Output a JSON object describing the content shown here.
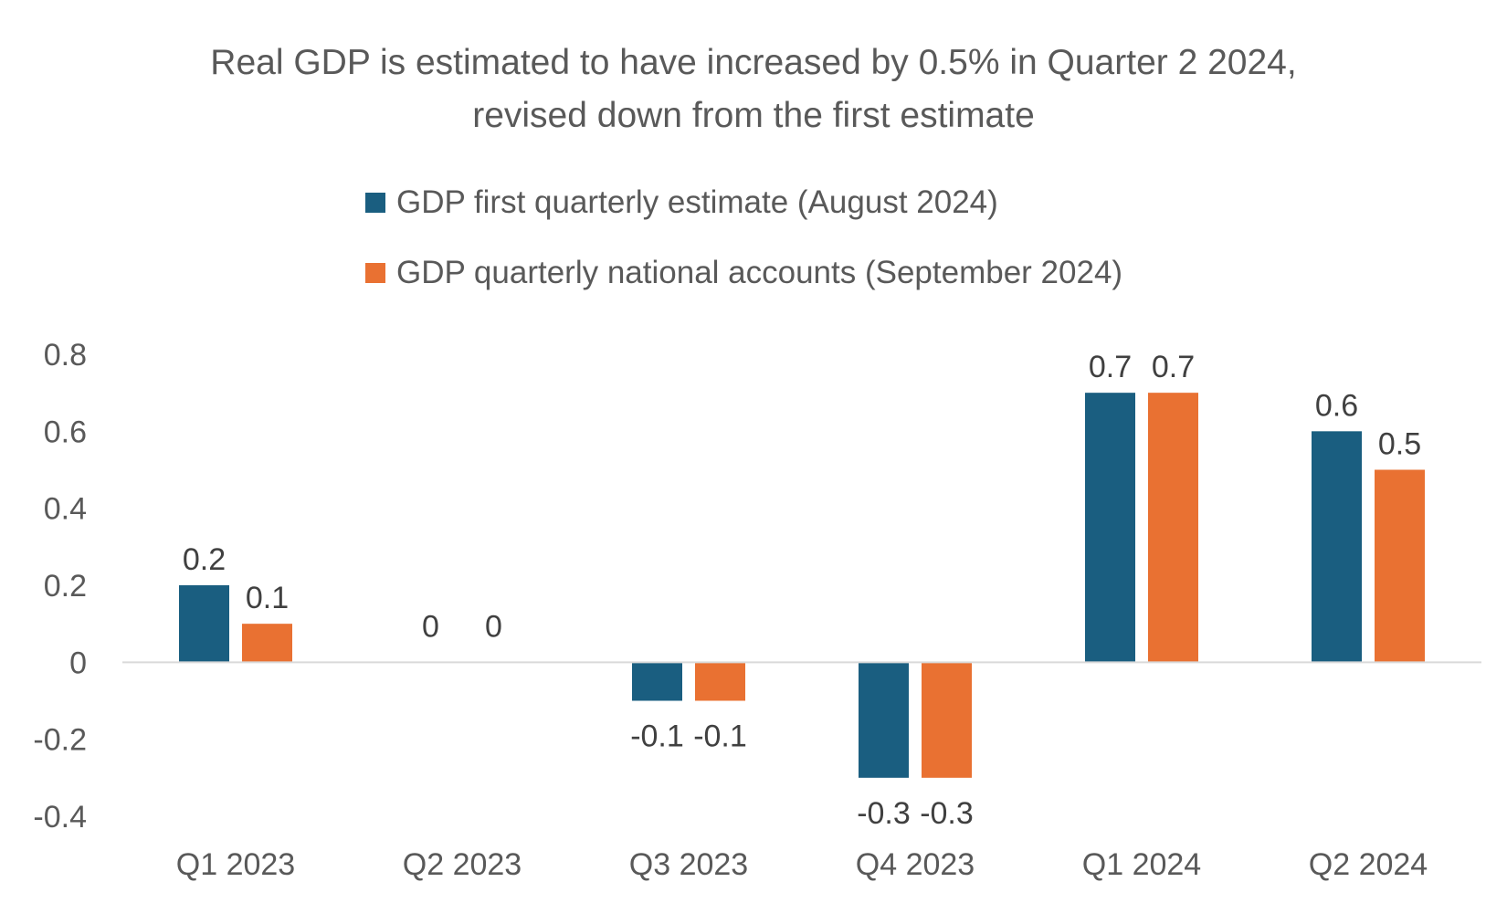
{
  "chart_data": {
    "type": "bar",
    "title_lines": [
      "Real GDP is estimated to have increased by 0.5% in Quarter 2 2024,",
      "revised down from the first estimate"
    ],
    "categories": [
      "Q1 2023",
      "Q2 2023",
      "Q3 2023",
      "Q4 2023",
      "Q1 2024",
      "Q2 2024"
    ],
    "series": [
      {
        "name": "GDP first quarterly estimate (August 2024)",
        "color": "#1a5e80",
        "values": [
          0.2,
          0,
          -0.1,
          -0.3,
          0.7,
          0.6
        ],
        "labels": [
          "0.2",
          "0",
          "-0.1",
          "-0.3",
          "0.7",
          "0.6"
        ]
      },
      {
        "name": "GDP quarterly national accounts (September 2024)",
        "color": "#e97132",
        "values": [
          0.1,
          0,
          -0.1,
          -0.3,
          0.7,
          0.5
        ],
        "labels": [
          "0.1",
          "0",
          "-0.1",
          "-0.3",
          "0.7",
          "0.5"
        ]
      }
    ],
    "y_ticks": [
      "0.8",
      "0.6",
      "0.4",
      "0.2",
      "0",
      "-0.2",
      "-0.4"
    ],
    "ylim": [
      -0.4,
      0.8
    ],
    "grid": false,
    "legend_position": "top-center"
  }
}
